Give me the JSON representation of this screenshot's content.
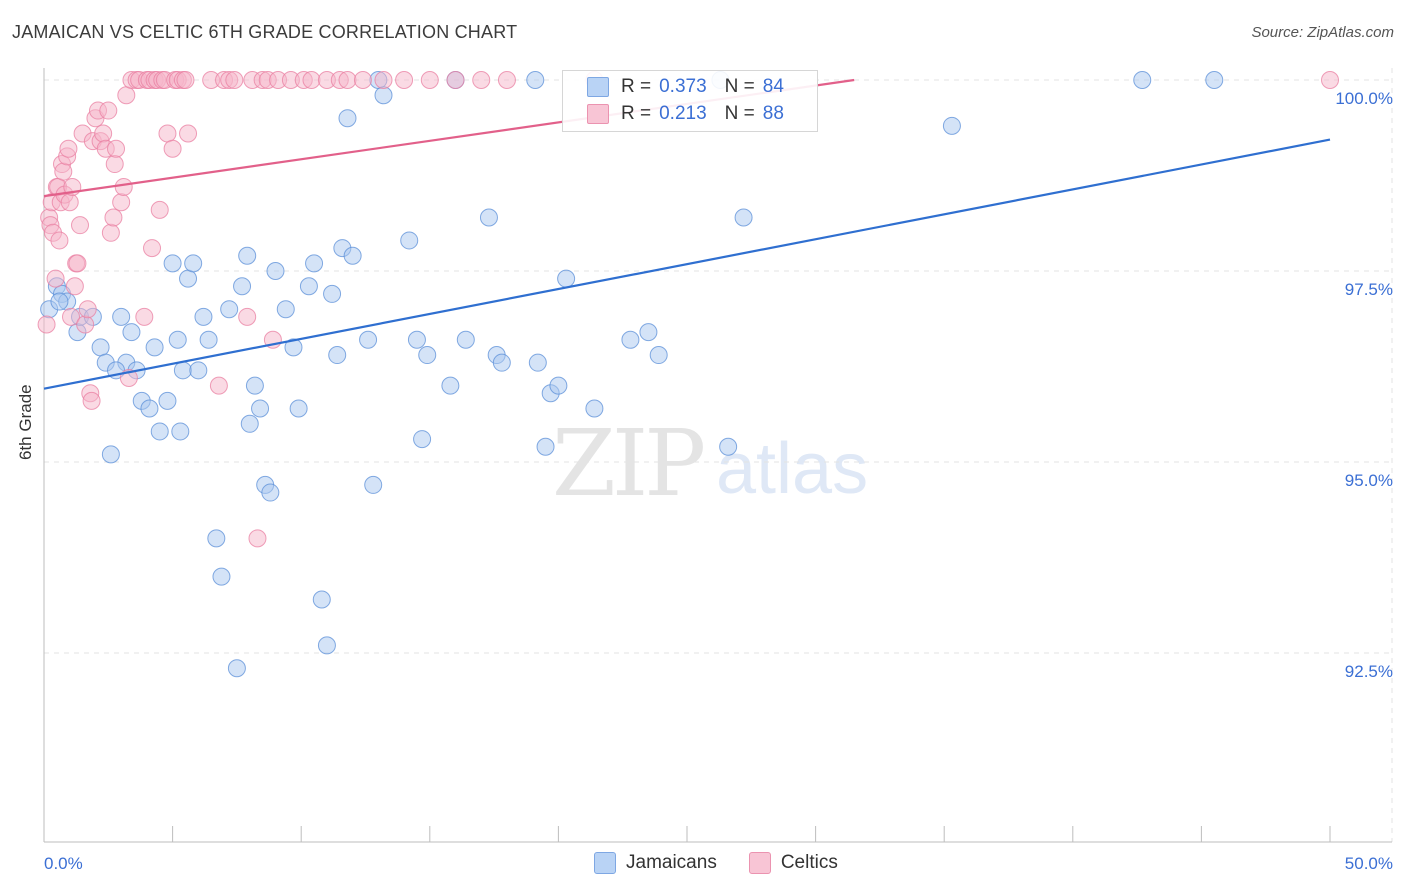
{
  "title": "JAMAICAN VS CELTIC 6TH GRADE CORRELATION CHART",
  "source": "Source: ZipAtlas.com",
  "watermark": {
    "zip": "ZIP",
    "atlas": "atlas"
  },
  "legend_top": [
    {
      "r_label": "R =",
      "r_value": "0.373",
      "n_label": "N =",
      "n_value": "84"
    },
    {
      "r_label": "R =",
      "r_value": "0.213",
      "n_label": "N =",
      "n_value": "88"
    }
  ],
  "legend_bottom": [
    "Jamaicans",
    "Celtics"
  ],
  "colors": {
    "blue_fill": "#a9c8f0",
    "blue_stroke": "#5b8fd8",
    "blue_line": "#2f6fd0",
    "pink_fill": "#f6b6ca",
    "pink_stroke": "#e97fa2",
    "pink_line": "#e2608a",
    "tick_text": "#3b6fd4"
  },
  "chart_data": {
    "type": "scatter",
    "title": "JAMAICAN VS CELTIC 6TH GRADE CORRELATION CHART",
    "xlabel": "",
    "ylabel": "6th Grade",
    "xlim": [
      0,
      50
    ],
    "ylim": [
      90.2,
      100.35
    ],
    "x_tick_labels": [
      {
        "value": 0,
        "label": "0.0%"
      },
      {
        "value": 50,
        "label": "50.0%"
      }
    ],
    "y_tick_labels": [
      {
        "value": 100,
        "label": "100.0%"
      },
      {
        "value": 97.5,
        "label": "97.5%"
      },
      {
        "value": 95,
        "label": "95.0%"
      },
      {
        "value": 92.5,
        "label": "92.5%"
      }
    ],
    "grid": true,
    "legend_position": "top-center",
    "series": [
      {
        "name": "Jamaicans",
        "r": 0.373,
        "n": 84,
        "trend": [
          [
            0,
            95.96
          ],
          [
            50,
            99.22
          ]
        ],
        "points": [
          [
            0.2,
            97.0
          ],
          [
            0.5,
            97.3
          ],
          [
            0.7,
            97.2
          ],
          [
            0.9,
            97.1
          ],
          [
            1.3,
            96.7
          ],
          [
            1.4,
            96.9
          ],
          [
            1.9,
            96.9
          ],
          [
            2.2,
            96.5
          ],
          [
            2.4,
            96.3
          ],
          [
            2.6,
            95.1
          ],
          [
            3.0,
            96.9
          ],
          [
            3.2,
            96.3
          ],
          [
            3.4,
            96.7
          ],
          [
            3.6,
            96.2
          ],
          [
            3.8,
            95.8
          ],
          [
            4.1,
            95.7
          ],
          [
            4.3,
            96.5
          ],
          [
            4.5,
            95.4
          ],
          [
            4.8,
            95.8
          ],
          [
            5.0,
            97.6
          ],
          [
            5.2,
            96.6
          ],
          [
            5.4,
            96.2
          ],
          [
            5.6,
            97.4
          ],
          [
            5.8,
            97.6
          ],
          [
            6.0,
            96.2
          ],
          [
            6.2,
            96.9
          ],
          [
            6.4,
            96.6
          ],
          [
            6.7,
            94.0
          ],
          [
            6.9,
            93.5
          ],
          [
            7.2,
            97.0
          ],
          [
            7.5,
            92.3
          ],
          [
            7.7,
            97.3
          ],
          [
            7.9,
            97.7
          ],
          [
            8.2,
            96.0
          ],
          [
            8.4,
            95.7
          ],
          [
            8.6,
            94.7
          ],
          [
            8.8,
            94.6
          ],
          [
            9.0,
            97.5
          ],
          [
            9.4,
            97.0
          ],
          [
            9.7,
            96.5
          ],
          [
            9.9,
            95.7
          ],
          [
            10.3,
            97.3
          ],
          [
            10.5,
            97.6
          ],
          [
            10.8,
            93.2
          ],
          [
            11.0,
            92.6
          ],
          [
            11.2,
            97.2
          ],
          [
            11.4,
            96.4
          ],
          [
            11.6,
            97.8
          ],
          [
            11.8,
            99.5
          ],
          [
            12.0,
            97.7
          ],
          [
            12.6,
            96.6
          ],
          [
            12.8,
            94.7
          ],
          [
            13.0,
            100.0
          ],
          [
            13.2,
            99.8
          ],
          [
            14.2,
            97.9
          ],
          [
            14.5,
            96.6
          ],
          [
            14.7,
            95.3
          ],
          [
            14.9,
            96.4
          ],
          [
            15.8,
            96.0
          ],
          [
            16.0,
            100.0
          ],
          [
            16.4,
            96.6
          ],
          [
            17.3,
            98.2
          ],
          [
            17.6,
            96.4
          ],
          [
            17.8,
            96.3
          ],
          [
            19.1,
            100.0
          ],
          [
            19.2,
            96.3
          ],
          [
            19.5,
            95.2
          ],
          [
            19.7,
            95.9
          ],
          [
            20.0,
            96.0
          ],
          [
            20.3,
            97.4
          ],
          [
            21.4,
            95.7
          ],
          [
            22.8,
            96.6
          ],
          [
            23.5,
            96.7
          ],
          [
            23.9,
            96.4
          ],
          [
            26.3,
            100.0
          ],
          [
            26.6,
            95.2
          ],
          [
            27.2,
            98.2
          ],
          [
            35.3,
            99.4
          ],
          [
            42.7,
            100.0
          ],
          [
            45.5,
            100.0
          ],
          [
            0.6,
            97.1
          ],
          [
            2.8,
            96.2
          ],
          [
            8.0,
            95.5
          ],
          [
            5.3,
            95.4
          ]
        ]
      },
      {
        "name": "Celtics",
        "r": 0.213,
        "n": 88,
        "trend": [
          [
            0,
            98.48
          ],
          [
            31.5,
            100.0
          ]
        ],
        "points": [
          [
            0.1,
            96.8
          ],
          [
            0.2,
            98.2
          ],
          [
            0.25,
            98.1
          ],
          [
            0.3,
            98.4
          ],
          [
            0.35,
            98.0
          ],
          [
            0.45,
            97.4
          ],
          [
            0.5,
            98.6
          ],
          [
            0.55,
            98.6
          ],
          [
            0.6,
            97.9
          ],
          [
            0.65,
            98.4
          ],
          [
            0.7,
            98.9
          ],
          [
            0.75,
            98.8
          ],
          [
            0.8,
            98.5
          ],
          [
            0.9,
            99.0
          ],
          [
            0.95,
            99.1
          ],
          [
            1.0,
            98.4
          ],
          [
            1.05,
            96.9
          ],
          [
            1.1,
            98.6
          ],
          [
            1.2,
            97.3
          ],
          [
            1.25,
            97.6
          ],
          [
            1.3,
            97.6
          ],
          [
            1.4,
            98.1
          ],
          [
            1.5,
            99.3
          ],
          [
            1.6,
            96.8
          ],
          [
            1.7,
            97.0
          ],
          [
            1.8,
            95.9
          ],
          [
            1.85,
            95.8
          ],
          [
            1.9,
            99.2
          ],
          [
            2.0,
            99.5
          ],
          [
            2.1,
            99.6
          ],
          [
            2.2,
            99.2
          ],
          [
            2.3,
            99.3
          ],
          [
            2.4,
            99.1
          ],
          [
            2.5,
            99.6
          ],
          [
            2.6,
            98.0
          ],
          [
            2.7,
            98.2
          ],
          [
            2.75,
            98.9
          ],
          [
            2.8,
            99.1
          ],
          [
            3.0,
            98.4
          ],
          [
            3.1,
            98.6
          ],
          [
            3.2,
            99.8
          ],
          [
            3.3,
            96.1
          ],
          [
            3.4,
            100.0
          ],
          [
            3.6,
            100.0
          ],
          [
            3.7,
            100.0
          ],
          [
            3.9,
            96.9
          ],
          [
            4.0,
            100.0
          ],
          [
            4.1,
            100.0
          ],
          [
            4.2,
            97.8
          ],
          [
            4.3,
            100.0
          ],
          [
            4.4,
            100.0
          ],
          [
            4.5,
            98.3
          ],
          [
            4.6,
            100.0
          ],
          [
            4.7,
            100.0
          ],
          [
            4.8,
            99.3
          ],
          [
            5.0,
            99.1
          ],
          [
            5.1,
            100.0
          ],
          [
            5.2,
            100.0
          ],
          [
            5.4,
            100.0
          ],
          [
            5.5,
            100.0
          ],
          [
            5.6,
            99.3
          ],
          [
            6.5,
            100.0
          ],
          [
            6.8,
            96.0
          ],
          [
            7.0,
            100.0
          ],
          [
            7.2,
            100.0
          ],
          [
            7.4,
            100.0
          ],
          [
            7.9,
            96.9
          ],
          [
            8.1,
            100.0
          ],
          [
            8.3,
            94.0
          ],
          [
            8.5,
            100.0
          ],
          [
            8.7,
            100.0
          ],
          [
            8.9,
            96.6
          ],
          [
            9.1,
            100.0
          ],
          [
            9.6,
            100.0
          ],
          [
            10.1,
            100.0
          ],
          [
            10.4,
            100.0
          ],
          [
            11.0,
            100.0
          ],
          [
            11.5,
            100.0
          ],
          [
            11.8,
            100.0
          ],
          [
            12.4,
            100.0
          ],
          [
            13.2,
            100.0
          ],
          [
            14.0,
            100.0
          ],
          [
            15.0,
            100.0
          ],
          [
            16.0,
            100.0
          ],
          [
            17.0,
            100.0
          ],
          [
            18.0,
            100.0
          ],
          [
            21.4,
            100.0
          ],
          [
            50.0,
            100.0
          ]
        ]
      }
    ]
  }
}
